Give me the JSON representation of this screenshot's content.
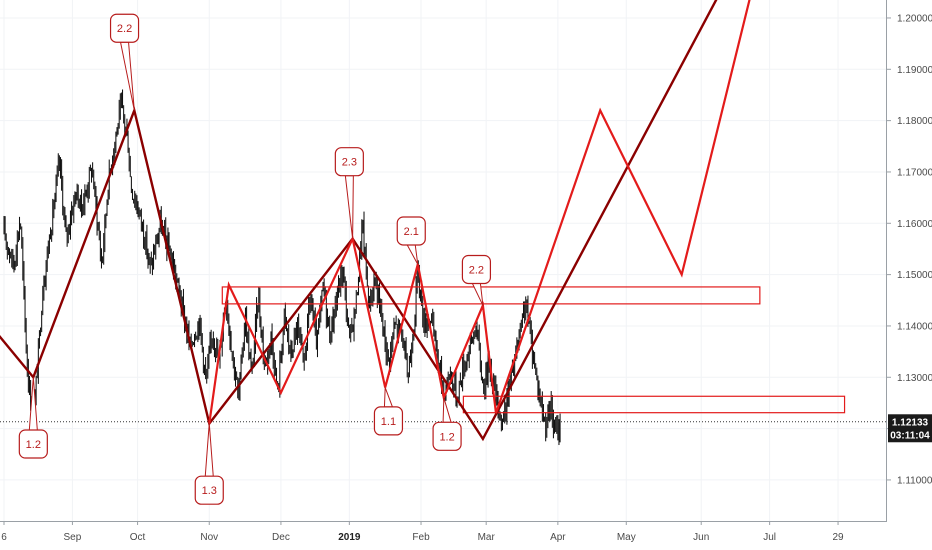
{
  "colors": {
    "candle": "#111111",
    "dark_wave": "#8b0000",
    "bright_wave": "#e31b1b",
    "zone": "#e31b1b",
    "label_border": "#b71c1c",
    "label_fill": "#ffffff",
    "price_tag_bg": "#1a1a1a",
    "grid": "#f1f3f6"
  },
  "chart_data": {
    "type": "line",
    "instrument_note": "",
    "y_axis": {
      "ylim": [
        1.102,
        1.2035
      ],
      "ticks": [
        "1.11000",
        "1.12000",
        "1.13000",
        "1.14000",
        "1.15000",
        "1.16000",
        "1.17000",
        "1.18000",
        "1.19000",
        "1.20000"
      ]
    },
    "x_axis": {
      "ticks": [
        {
          "label": "6",
          "bold": false,
          "day": 0
        },
        {
          "label": "Sep",
          "bold": false,
          "day": 21
        },
        {
          "label": "Oct",
          "bold": false,
          "day": 41
        },
        {
          "label": "Nov",
          "bold": false,
          "day": 63
        },
        {
          "label": "Dec",
          "bold": false,
          "day": 85
        },
        {
          "label": "2019",
          "bold": true,
          "day": 106
        },
        {
          "label": "Feb",
          "bold": false,
          "day": 128
        },
        {
          "label": "Mar",
          "bold": false,
          "day": 148
        },
        {
          "label": "Apr",
          "bold": false,
          "day": 170
        },
        {
          "label": "May",
          "bold": false,
          "day": 191
        },
        {
          "label": "Jun",
          "bold": false,
          "day": 214
        },
        {
          "label": "Jul",
          "bold": false,
          "day": 235
        },
        {
          "label": "29",
          "bold": false,
          "day": 256
        }
      ]
    },
    "price_path": [
      [
        0,
        1.158
      ],
      [
        3,
        1.152
      ],
      [
        5,
        1.161
      ],
      [
        7,
        1.133
      ],
      [
        9,
        1.121
      ],
      [
        12,
        1.148
      ],
      [
        15,
        1.162
      ],
      [
        17,
        1.172
      ],
      [
        19,
        1.157
      ],
      [
        22,
        1.166
      ],
      [
        24,
        1.163
      ],
      [
        27,
        1.171
      ],
      [
        30,
        1.152
      ],
      [
        32,
        1.168
      ],
      [
        34,
        1.176
      ],
      [
        36,
        1.183
      ],
      [
        38,
        1.176
      ],
      [
        39,
        1.167
      ],
      [
        42,
        1.161
      ],
      [
        45,
        1.151
      ],
      [
        48,
        1.16
      ],
      [
        51,
        1.154
      ],
      [
        54,
        1.146
      ],
      [
        57,
        1.136
      ],
      [
        60,
        1.141
      ],
      [
        62,
        1.129
      ],
      [
        64,
        1.139
      ],
      [
        66,
        1.133
      ],
      [
        68,
        1.146
      ],
      [
        70,
        1.135
      ],
      [
        72,
        1.126
      ],
      [
        74,
        1.142
      ],
      [
        76,
        1.13
      ],
      [
        78,
        1.146
      ],
      [
        80,
        1.132
      ],
      [
        82,
        1.138
      ],
      [
        84,
        1.127
      ],
      [
        86,
        1.142
      ],
      [
        88,
        1.134
      ],
      [
        90,
        1.14
      ],
      [
        92,
        1.132
      ],
      [
        94,
        1.146
      ],
      [
        96,
        1.136
      ],
      [
        98,
        1.148
      ],
      [
        100,
        1.138
      ],
      [
        102,
        1.145
      ],
      [
        104,
        1.151
      ],
      [
        106,
        1.137
      ],
      [
        108,
        1.144
      ],
      [
        110,
        1.16
      ],
      [
        112,
        1.144
      ],
      [
        114,
        1.149
      ],
      [
        116,
        1.141
      ],
      [
        118,
        1.133
      ],
      [
        120,
        1.14
      ],
      [
        122,
        1.139
      ],
      [
        124,
        1.13
      ],
      [
        126,
        1.142
      ],
      [
        127,
        1.151
      ],
      [
        129,
        1.14
      ],
      [
        131,
        1.142
      ],
      [
        133,
        1.134
      ],
      [
        135,
        1.127
      ],
      [
        137,
        1.131
      ],
      [
        139,
        1.126
      ],
      [
        141,
        1.132
      ],
      [
        143,
        1.136
      ],
      [
        145,
        1.14
      ],
      [
        147,
        1.128
      ],
      [
        149,
        1.133
      ],
      [
        151,
        1.126
      ],
      [
        153,
        1.121
      ],
      [
        155,
        1.128
      ],
      [
        157,
        1.134
      ],
      [
        159,
        1.14
      ],
      [
        160,
        1.145
      ],
      [
        162,
        1.136
      ],
      [
        164,
        1.128
      ],
      [
        166,
        1.121
      ],
      [
        168,
        1.124
      ],
      [
        169,
        1.119
      ],
      [
        171,
        1.121
      ]
    ],
    "current_price": {
      "value": 1.12133,
      "label": "1.12133"
    },
    "countdown": {
      "value": 1.1188,
      "label": "03:11:04"
    },
    "zones": [
      {
        "x1": 67,
        "x2": 232,
        "y1": 1.1476,
        "y2": 1.1443
      },
      {
        "x1": 141,
        "x2": 258,
        "y1": 1.1263,
        "y2": 1.1231
      }
    ],
    "waves": [
      {
        "name": "",
        "color": "dark_wave",
        "width": 2.4,
        "points": [
          [
            -4,
            1.14
          ],
          [
            9,
            1.13
          ],
          [
            40,
            1.182
          ],
          [
            63,
            1.121
          ],
          [
            107,
            1.157
          ],
          [
            147,
            1.118
          ],
          [
            219,
            1.204
          ]
        ]
      },
      {
        "name": "",
        "color": "bright_wave",
        "width": 2.2,
        "points": [
          [
            63,
            1.121
          ],
          [
            69,
            1.148
          ],
          [
            85,
            1.127
          ],
          [
            107,
            1.157
          ],
          [
            117,
            1.128
          ],
          [
            127,
            1.152
          ],
          [
            135,
            1.126
          ],
          [
            147,
            1.144
          ],
          [
            151,
            1.123
          ],
          [
            183,
            1.182
          ],
          [
            208,
            1.15
          ],
          [
            229,
            1.204
          ]
        ]
      }
    ],
    "wave_labels": [
      {
        "text": "1.2",
        "anchor": [
          9,
          1.13
        ],
        "pos": [
          9,
          1.117
        ]
      },
      {
        "text": "2.2",
        "anchor": [
          40,
          1.182
        ],
        "pos": [
          37,
          1.198
        ]
      },
      {
        "text": "1.3",
        "anchor": [
          63,
          1.121
        ],
        "pos": [
          63,
          1.108
        ]
      },
      {
        "text": "2.3",
        "anchor": [
          107,
          1.157
        ],
        "pos": [
          106,
          1.172
        ]
      },
      {
        "text": "2.1",
        "anchor": [
          127,
          1.152
        ],
        "pos": [
          125,
          1.1585
        ]
      },
      {
        "text": "1.1",
        "anchor": [
          117,
          1.128
        ],
        "pos": [
          118,
          1.1215
        ]
      },
      {
        "text": "2.2",
        "anchor": [
          147,
          1.144
        ],
        "pos": [
          145,
          1.151
        ]
      },
      {
        "text": "1.2",
        "anchor": [
          135,
          1.126
        ],
        "pos": [
          136,
          1.1185
        ]
      }
    ]
  }
}
